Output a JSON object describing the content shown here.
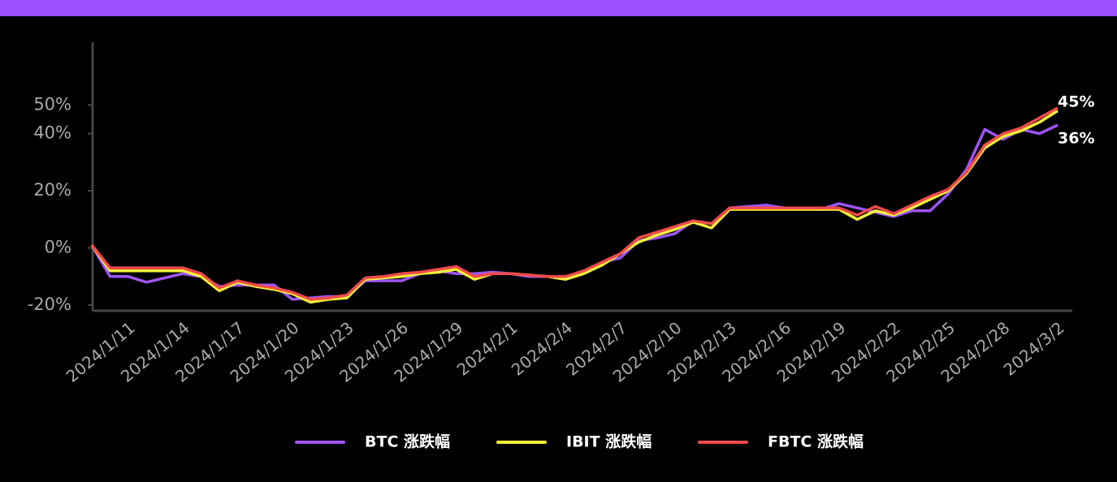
{
  "chart_data": {
    "type": "line",
    "categories": [
      null,
      null,
      "2024/1/11",
      null,
      null,
      "2024/1/14",
      null,
      null,
      "2024/1/17",
      null,
      null,
      "2024/1/20",
      null,
      null,
      "2024/1/23",
      null,
      null,
      "2024/1/26",
      null,
      null,
      "2024/1/29",
      null,
      null,
      "2024/2/1",
      null,
      null,
      "2024/2/4",
      null,
      null,
      "2024/2/7",
      null,
      null,
      "2024/2/10",
      null,
      null,
      "2024/2/13",
      null,
      null,
      "2024/2/16",
      null,
      null,
      "2024/2/19",
      null,
      null,
      "2024/2/22",
      null,
      null,
      "2024/2/25",
      null,
      null,
      "2024/2/28",
      null,
      null,
      "2024/3/2"
    ],
    "series": [
      {
        "name": "BTC 涨跌幅",
        "color": "#9d55f5",
        "values": [
          1,
          -10,
          -10,
          -12,
          -10.5,
          -9,
          -10,
          -13.5,
          -13,
          -13,
          -13,
          -18,
          -17.5,
          -17,
          -17,
          -11.5,
          -11.5,
          -11.5,
          -9,
          -8,
          -9,
          -9,
          -8.5,
          -9,
          -10,
          -10,
          -10,
          -8.5,
          -5,
          -3.5,
          2.5,
          3.5,
          5,
          9.5,
          8.5,
          14,
          14.5,
          15,
          14,
          14,
          13.5,
          15.5,
          14,
          12.5,
          11,
          13,
          13,
          19,
          27.5,
          41.5,
          38,
          41.5,
          40,
          43
        ]
      },
      {
        "name": "IBIT 涨跌幅",
        "color": "#f3f03a",
        "values": [
          1,
          -8,
          -8,
          -8,
          -8,
          -8,
          -10,
          -15,
          -12,
          -13.5,
          -14.5,
          -16,
          -19,
          -18,
          -17.5,
          -11,
          -10.5,
          -10,
          -9,
          -8.5,
          -7.5,
          -11,
          -9,
          -9,
          -9.5,
          -10,
          -11,
          -9,
          -6,
          -2,
          2,
          4.5,
          6.5,
          9,
          7,
          13.5,
          13.5,
          13.5,
          13.5,
          13.5,
          13.5,
          13.5,
          10,
          13,
          11.5,
          14,
          17,
          20,
          26,
          35,
          39,
          41,
          44,
          48
        ]
      },
      {
        "name": "FBTC 涨跌幅",
        "color": "#f04a4a",
        "values": [
          1,
          -7,
          -7,
          -7,
          -7,
          -7,
          -9,
          -14,
          -11.5,
          -13,
          -14,
          -15.5,
          -18,
          -17.5,
          -16.5,
          -10.5,
          -10,
          -9,
          -8.5,
          -7.5,
          -6.5,
          -10,
          -9,
          -9,
          -9.5,
          -10,
          -10,
          -8,
          -5,
          -2,
          3.5,
          5.5,
          7.5,
          9.5,
          8.5,
          14,
          14,
          14,
          14,
          14,
          14,
          14,
          11.5,
          14.5,
          12,
          15,
          18,
          20.5,
          26.5,
          36,
          40,
          42,
          45.5,
          49
        ]
      }
    ],
    "annotations": [
      "45%",
      "36%"
    ],
    "ylim": [
      -22,
      72
    ],
    "yticks": [
      {
        "value": -20,
        "label": "-20%"
      },
      {
        "value": 0,
        "label": "0%"
      },
      {
        "value": 20,
        "label": "20%"
      },
      {
        "value": 40,
        "label": "40%"
      },
      {
        "value": 50,
        "label": "50%"
      }
    ]
  }
}
